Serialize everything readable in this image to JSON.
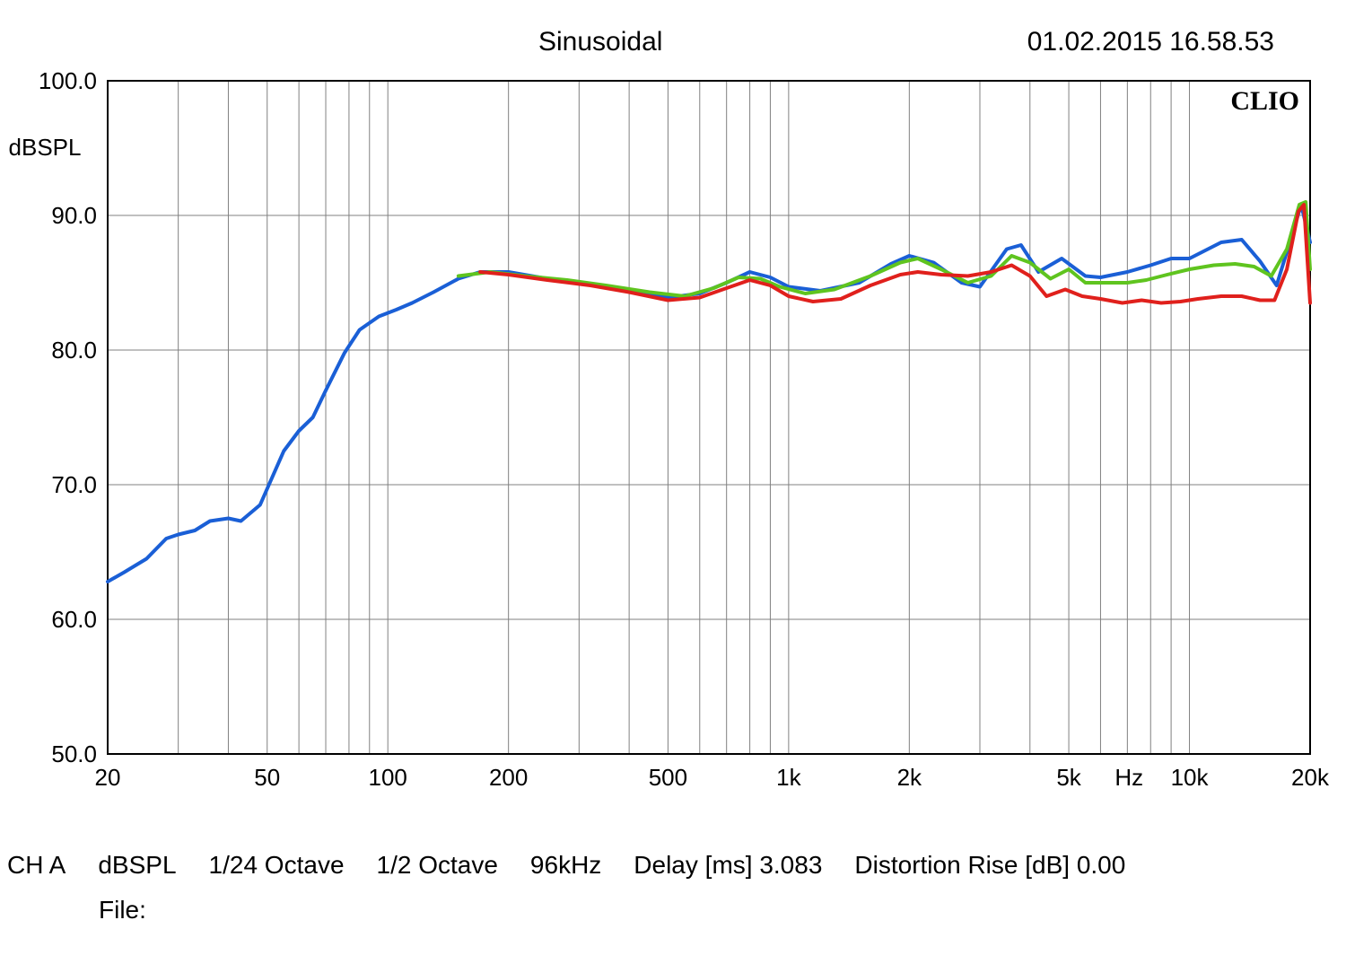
{
  "header": {
    "title": "Sinusoidal",
    "timestamp": "01.02.2015 16.58.53"
  },
  "watermark": "CLIO",
  "chart": {
    "type": "line",
    "xscale": "log",
    "yscale": "linear",
    "xlim": [
      20,
      20000
    ],
    "ylim": [
      50,
      100
    ],
    "ylabel": "dBSPL",
    "xunit_label": "Hz",
    "background_color": "#ffffff",
    "grid_color": "#808080",
    "grid_stroke": 1,
    "axis_stroke": 2,
    "label_fontsize": 26,
    "watermark_fontsize": 30,
    "yticks": [
      50.0,
      60.0,
      70.0,
      80.0,
      90.0,
      100.0
    ],
    "ytick_labels": [
      "50.0",
      "60.0",
      "70.0",
      "80.0",
      "90.0",
      "100.0"
    ],
    "xticks_major": [
      20,
      50,
      100,
      200,
      500,
      1000,
      2000,
      5000,
      10000,
      20000
    ],
    "xtick_labels": [
      "20",
      "50",
      "100",
      "200",
      "500",
      "1k",
      "2k",
      "5k",
      "10k",
      "20k"
    ],
    "xunit_label_after_index": 7,
    "xticks_minor": [
      30,
      40,
      60,
      70,
      80,
      90,
      300,
      400,
      600,
      700,
      800,
      900,
      3000,
      4000,
      6000,
      7000,
      8000,
      9000
    ],
    "series": [
      {
        "name": "blue",
        "color": "#1a5fd6",
        "width": 4,
        "points": [
          [
            20,
            62.8
          ],
          [
            22,
            63.5
          ],
          [
            25,
            64.5
          ],
          [
            28,
            66.0
          ],
          [
            30,
            66.3
          ],
          [
            33,
            66.6
          ],
          [
            36,
            67.3
          ],
          [
            40,
            67.5
          ],
          [
            43,
            67.3
          ],
          [
            48,
            68.5
          ],
          [
            55,
            72.5
          ],
          [
            60,
            74.0
          ],
          [
            65,
            75.0
          ],
          [
            70,
            77.0
          ],
          [
            78,
            79.8
          ],
          [
            85,
            81.5
          ],
          [
            95,
            82.5
          ],
          [
            105,
            83.0
          ],
          [
            115,
            83.5
          ],
          [
            130,
            84.3
          ],
          [
            150,
            85.3
          ],
          [
            170,
            85.8
          ],
          [
            200,
            85.8
          ],
          [
            250,
            85.3
          ],
          [
            300,
            85.0
          ],
          [
            400,
            84.5
          ],
          [
            500,
            83.9
          ],
          [
            600,
            84.2
          ],
          [
            700,
            85.0
          ],
          [
            800,
            85.8
          ],
          [
            900,
            85.4
          ],
          [
            1000,
            84.7
          ],
          [
            1200,
            84.4
          ],
          [
            1500,
            85.0
          ],
          [
            1800,
            86.4
          ],
          [
            2000,
            87.0
          ],
          [
            2300,
            86.5
          ],
          [
            2700,
            85.0
          ],
          [
            3000,
            84.7
          ],
          [
            3500,
            87.5
          ],
          [
            3800,
            87.8
          ],
          [
            4200,
            85.8
          ],
          [
            4800,
            86.8
          ],
          [
            5500,
            85.5
          ],
          [
            6000,
            85.4
          ],
          [
            7000,
            85.8
          ],
          [
            8000,
            86.3
          ],
          [
            9000,
            86.8
          ],
          [
            10000,
            86.8
          ],
          [
            12000,
            88.0
          ],
          [
            13500,
            88.2
          ],
          [
            15000,
            86.6
          ],
          [
            16500,
            84.8
          ],
          [
            18000,
            88.5
          ],
          [
            19000,
            90.8
          ],
          [
            20000,
            88.0
          ]
        ]
      },
      {
        "name": "green",
        "color": "#5fc41f",
        "width": 4,
        "points": [
          [
            150,
            85.5
          ],
          [
            180,
            85.8
          ],
          [
            220,
            85.5
          ],
          [
            280,
            85.2
          ],
          [
            350,
            84.8
          ],
          [
            450,
            84.3
          ],
          [
            550,
            84.0
          ],
          [
            650,
            84.6
          ],
          [
            750,
            85.4
          ],
          [
            850,
            85.3
          ],
          [
            950,
            84.7
          ],
          [
            1100,
            84.2
          ],
          [
            1300,
            84.5
          ],
          [
            1600,
            85.5
          ],
          [
            1900,
            86.5
          ],
          [
            2100,
            86.8
          ],
          [
            2400,
            86.0
          ],
          [
            2800,
            85.0
          ],
          [
            3200,
            85.5
          ],
          [
            3600,
            87.0
          ],
          [
            4000,
            86.5
          ],
          [
            4500,
            85.3
          ],
          [
            5000,
            86.0
          ],
          [
            5500,
            85.0
          ],
          [
            6200,
            85.0
          ],
          [
            7000,
            85.0
          ],
          [
            7800,
            85.2
          ],
          [
            8800,
            85.6
          ],
          [
            10000,
            86.0
          ],
          [
            11500,
            86.3
          ],
          [
            13000,
            86.4
          ],
          [
            14500,
            86.2
          ],
          [
            16000,
            85.5
          ],
          [
            17500,
            87.5
          ],
          [
            18800,
            90.8
          ],
          [
            19500,
            91.0
          ],
          [
            20000,
            86.0
          ]
        ]
      },
      {
        "name": "red",
        "color": "#e0201c",
        "width": 4,
        "points": [
          [
            170,
            85.8
          ],
          [
            200,
            85.6
          ],
          [
            250,
            85.2
          ],
          [
            320,
            84.8
          ],
          [
            400,
            84.3
          ],
          [
            500,
            83.7
          ],
          [
            600,
            83.9
          ],
          [
            700,
            84.6
          ],
          [
            800,
            85.2
          ],
          [
            900,
            84.8
          ],
          [
            1000,
            84.0
          ],
          [
            1150,
            83.6
          ],
          [
            1350,
            83.8
          ],
          [
            1600,
            84.8
          ],
          [
            1900,
            85.6
          ],
          [
            2100,
            85.8
          ],
          [
            2400,
            85.6
          ],
          [
            2800,
            85.5
          ],
          [
            3200,
            85.8
          ],
          [
            3600,
            86.3
          ],
          [
            4000,
            85.5
          ],
          [
            4400,
            84.0
          ],
          [
            4900,
            84.5
          ],
          [
            5400,
            84.0
          ],
          [
            6000,
            83.8
          ],
          [
            6800,
            83.5
          ],
          [
            7600,
            83.7
          ],
          [
            8500,
            83.5
          ],
          [
            9500,
            83.6
          ],
          [
            10500,
            83.8
          ],
          [
            12000,
            84.0
          ],
          [
            13500,
            84.0
          ],
          [
            15000,
            83.7
          ],
          [
            16300,
            83.7
          ],
          [
            17500,
            86.0
          ],
          [
            18700,
            90.3
          ],
          [
            19300,
            90.8
          ],
          [
            20000,
            83.5
          ]
        ]
      }
    ]
  },
  "footer": {
    "segments": [
      "CH A",
      "dBSPL",
      "1/24 Octave",
      "1/2 Octave",
      "96kHz",
      "Delay [ms] 3.083",
      "Distortion Rise [dB] 0.00"
    ],
    "file_label": "File:"
  }
}
